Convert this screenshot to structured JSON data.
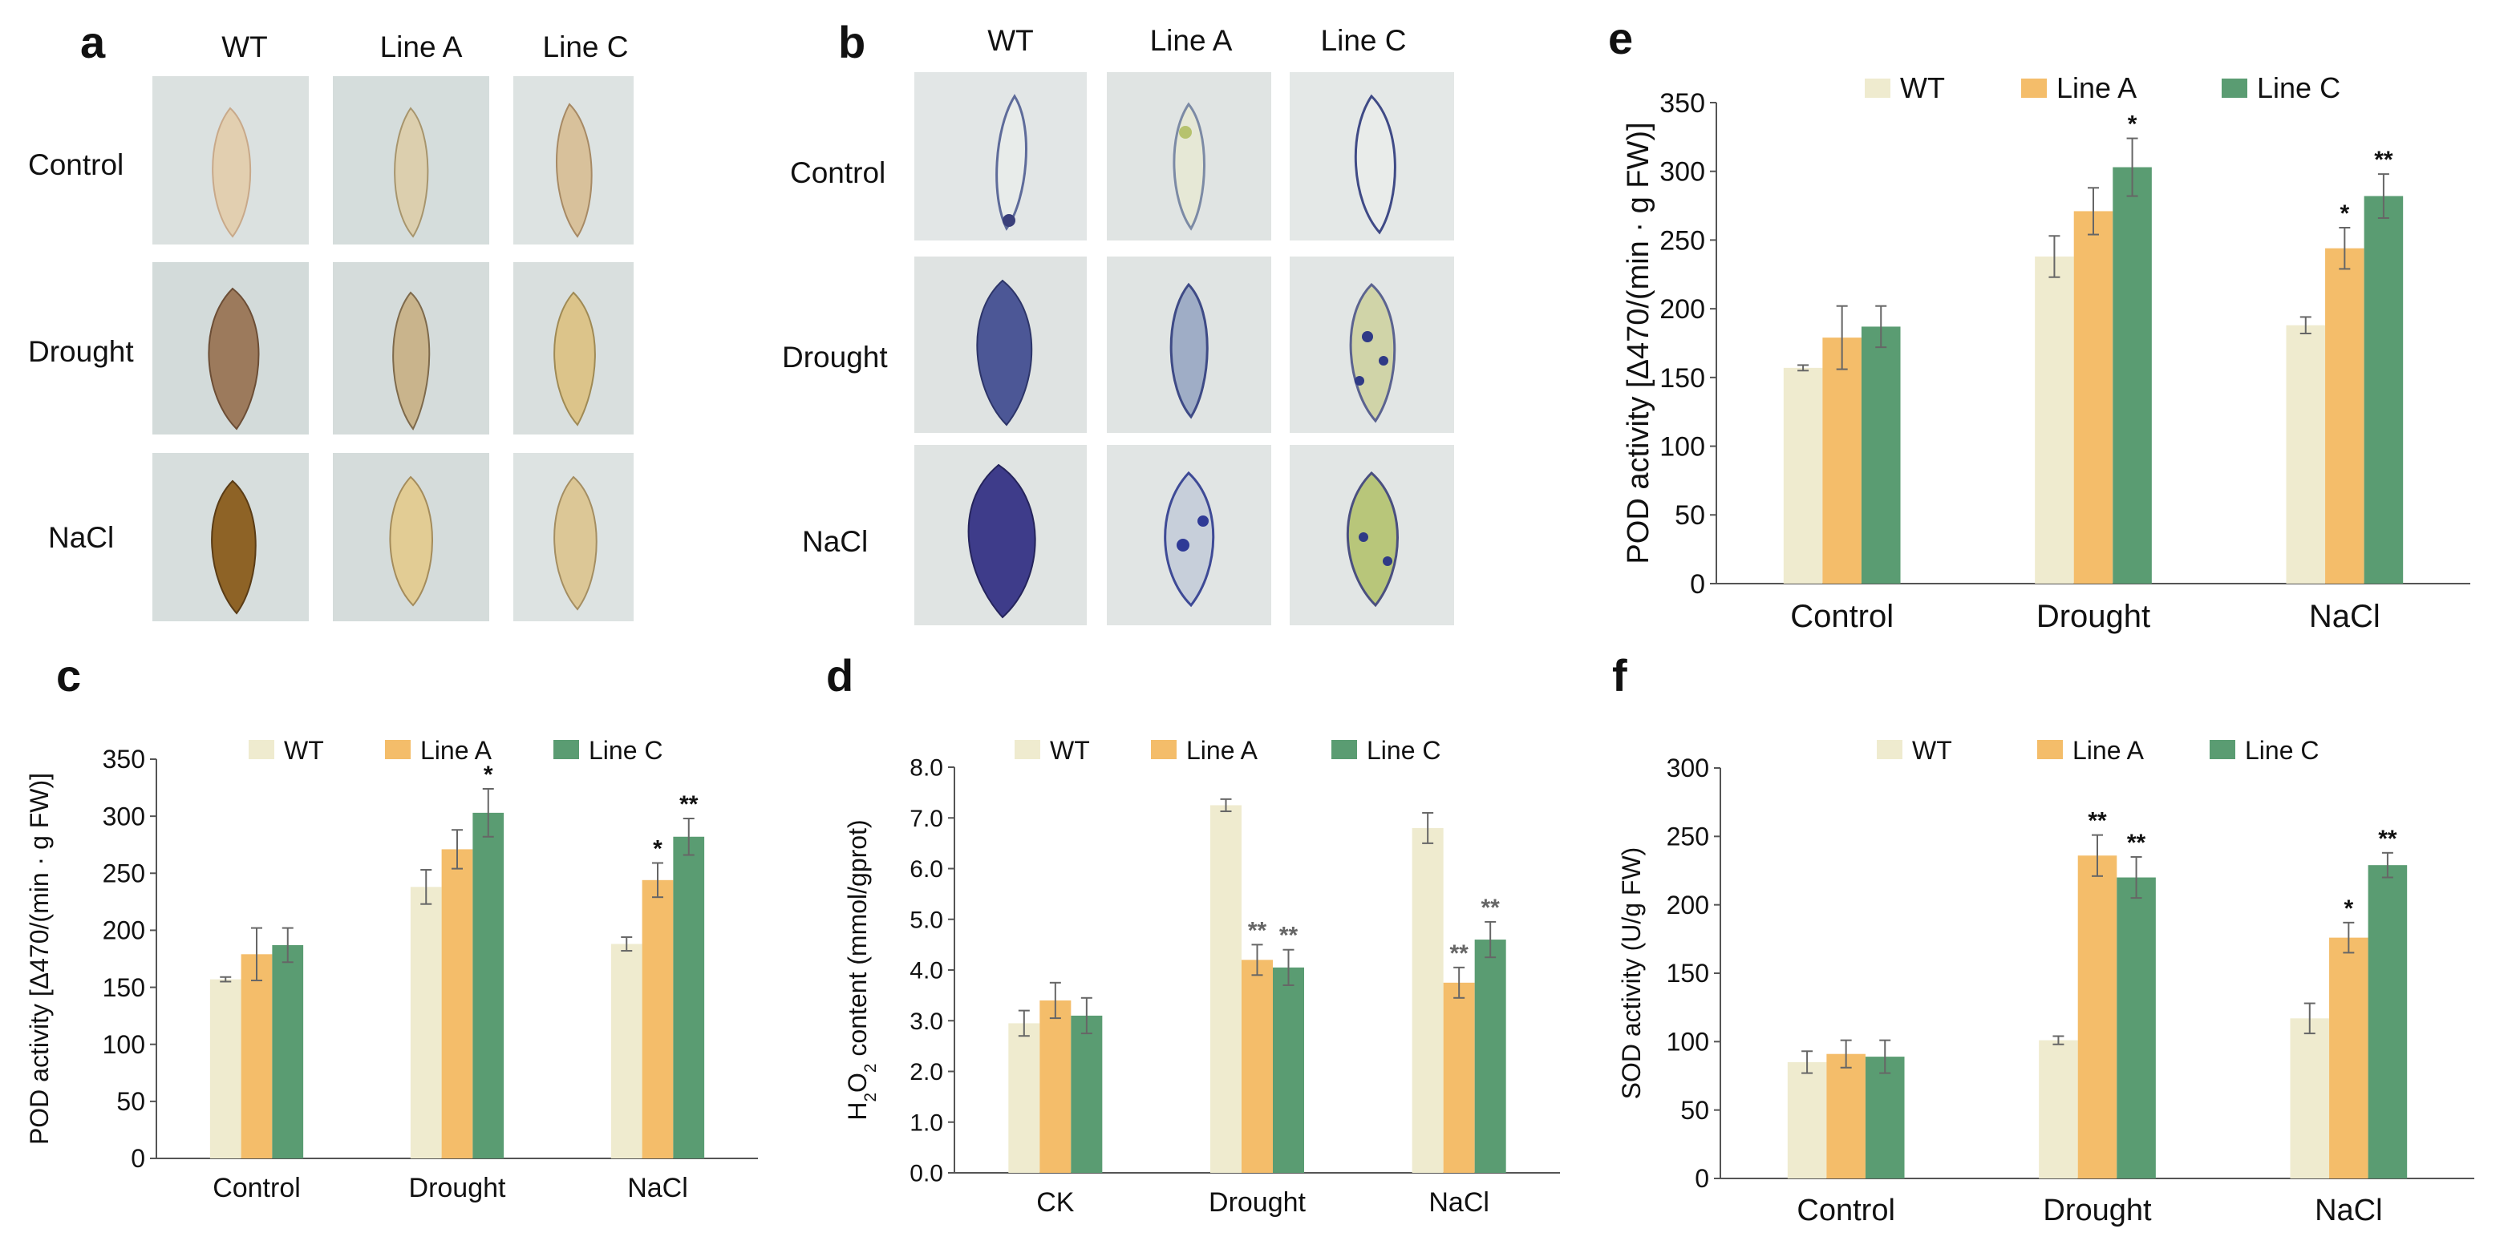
{
  "panels": {
    "a": {
      "letter": "a",
      "columns": [
        "WT",
        "Line A",
        "Line C"
      ],
      "rows": [
        "Control",
        "Drought",
        "NaCl"
      ]
    },
    "b": {
      "letter": "b",
      "columns": [
        "WT",
        "Line A",
        "Line C"
      ],
      "rows": [
        "Control",
        "Drought",
        "NaCl"
      ]
    }
  },
  "colors": {
    "wt": "#efebcf",
    "line_a": "#f4bd6a",
    "line_c": "#5a9c72",
    "photo_bg_a": "#d9e0df",
    "photo_bg_b": "#e2e6e6"
  },
  "chart_data": [
    {
      "id": "e",
      "letter": "e",
      "type": "bar",
      "categories": [
        "Control",
        "Drought",
        "NaCl"
      ],
      "series": [
        {
          "name": "WT",
          "values": [
            157,
            238,
            188
          ],
          "errors": [
            2,
            15,
            6
          ],
          "sig": [
            "",
            "",
            ""
          ]
        },
        {
          "name": "Line A",
          "values": [
            179,
            271,
            244
          ],
          "errors": [
            23,
            17,
            15
          ],
          "sig": [
            "",
            "",
            "*"
          ]
        },
        {
          "name": "Line C",
          "values": [
            187,
            303,
            282
          ],
          "errors": [
            15,
            21,
            16
          ],
          "sig": [
            "",
            "*",
            "**"
          ]
        }
      ],
      "ylabel": "POD activity [Δ470/(min · g FW)]",
      "ylim": [
        0,
        350
      ],
      "yticks": [
        "0",
        "50",
        "100",
        "150",
        "200",
        "250",
        "300",
        "350"
      ],
      "ytick_values": [
        0,
        50,
        100,
        150,
        200,
        250,
        300,
        350
      ],
      "legend": "top"
    },
    {
      "id": "c",
      "letter": "c",
      "type": "bar",
      "categories": [
        "Control",
        "Drought",
        "NaCl"
      ],
      "series": [
        {
          "name": "WT",
          "values": [
            157,
            238,
            188
          ],
          "errors": [
            2,
            15,
            6
          ],
          "sig": [
            "",
            "",
            ""
          ]
        },
        {
          "name": "Line A",
          "values": [
            179,
            271,
            244
          ],
          "errors": [
            23,
            17,
            15
          ],
          "sig": [
            "",
            "",
            "*"
          ]
        },
        {
          "name": "Line C",
          "values": [
            187,
            303,
            282
          ],
          "errors": [
            15,
            21,
            16
          ],
          "sig": [
            "",
            "*",
            "**"
          ]
        }
      ],
      "ylabel": "POD activity [Δ470/(min · g FW)]",
      "ylim": [
        0,
        350
      ],
      "yticks": [
        "0",
        "50",
        "100",
        "150",
        "200",
        "250",
        "300",
        "350"
      ],
      "ytick_values": [
        0,
        50,
        100,
        150,
        200,
        250,
        300,
        350
      ],
      "legend": "top"
    },
    {
      "id": "d",
      "letter": "d",
      "type": "bar",
      "categories": [
        "CK",
        "Drought",
        "NaCl"
      ],
      "series": [
        {
          "name": "WT",
          "values": [
            2.95,
            7.25,
            6.8
          ],
          "errors": [
            0.25,
            0.12,
            0.3
          ],
          "sig": [
            "",
            "",
            ""
          ]
        },
        {
          "name": "Line A",
          "values": [
            3.4,
            4.2,
            3.75
          ],
          "errors": [
            0.35,
            0.3,
            0.3
          ],
          "sig": [
            "",
            "**",
            "**"
          ]
        },
        {
          "name": "Line C",
          "values": [
            3.1,
            4.05,
            4.6
          ],
          "errors": [
            0.35,
            0.35,
            0.35
          ],
          "sig": [
            "",
            "**",
            "**"
          ]
        }
      ],
      "ylabel_main": "H",
      "ylabel_sub1": "2",
      "ylabel_mid": "O",
      "ylabel_sub2": "2",
      "ylabel_rest": " content (mmol/gprot)",
      "ylim": [
        0,
        8
      ],
      "yticks": [
        "0.0",
        "1.0",
        "2.0",
        "3.0",
        "4.0",
        "5.0",
        "6.0",
        "7.0",
        "8.0"
      ],
      "ytick_values": [
        0,
        1,
        2,
        3,
        4,
        5,
        6,
        7,
        8
      ],
      "legend": "top"
    },
    {
      "id": "f",
      "letter": "f",
      "type": "bar",
      "categories": [
        "Control",
        "Drought",
        "NaCl"
      ],
      "series": [
        {
          "name": "WT",
          "values": [
            85,
            101,
            117
          ],
          "errors": [
            8,
            3,
            11
          ],
          "sig": [
            "",
            "",
            ""
          ]
        },
        {
          "name": "Line A",
          "values": [
            91,
            236,
            176
          ],
          "errors": [
            10,
            15,
            11
          ],
          "sig": [
            "",
            "**",
            "*"
          ]
        },
        {
          "name": "Line C",
          "values": [
            89,
            220,
            229
          ],
          "errors": [
            12,
            15,
            9
          ],
          "sig": [
            "",
            "**",
            "**"
          ]
        }
      ],
      "ylabel": "SOD activity (U/g FW)",
      "ylim": [
        0,
        300
      ],
      "yticks": [
        "0",
        "50",
        "100",
        "150",
        "200",
        "250",
        "300"
      ],
      "ytick_values": [
        0,
        50,
        100,
        150,
        200,
        250,
        300
      ],
      "legend": "top"
    }
  ]
}
